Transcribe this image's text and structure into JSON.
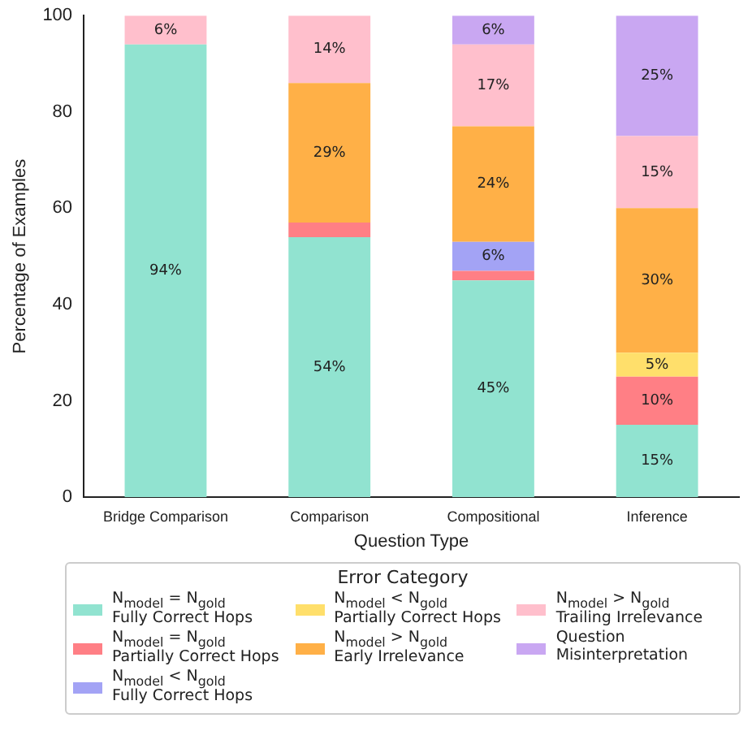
{
  "chart_data": {
    "type": "bar",
    "stacked": true,
    "xlabel": "Question Type",
    "ylabel": "Percentage of Examples",
    "legend_title": "Error Category",
    "legend": "bottom",
    "grid": false,
    "categories": [
      "Bridge Comparison",
      "Comparison",
      "Compositional",
      "Inference"
    ],
    "ylim": [
      0,
      100
    ],
    "yticks": [
      0,
      20,
      40,
      60,
      80,
      100
    ],
    "series": [
      {
        "name": "N$_{model}$ = N$_{gold}$\nFully Correct Hops",
        "color": "#91e3d0",
        "values": [
          94,
          54,
          45,
          15
        ],
        "value_labels": [
          "94%",
          "54%",
          "45%",
          "15%"
        ]
      },
      {
        "name": "N$_{model}$ = N$_{gold}$\nPartially Correct Hops",
        "color": "#ff7f85",
        "values": [
          0,
          3,
          2,
          10
        ],
        "value_labels": [
          null,
          null,
          null,
          "10%"
        ]
      },
      {
        "name": "N$_{model}$ < N$_{gold}$\nFully Correct Hops",
        "color": "#a3a3f5",
        "values": [
          0,
          0,
          6,
          0
        ],
        "value_labels": [
          null,
          null,
          "6%",
          null
        ]
      },
      {
        "name": "N$_{model}$ < N$_{gold}$\nPartially Correct Hops",
        "color": "#ffdf6b",
        "values": [
          0,
          0,
          0,
          5
        ],
        "value_labels": [
          null,
          null,
          null,
          "5%"
        ]
      },
      {
        "name": "N$_{model}$ > N$_{gold}$\nEarly Irrelevance",
        "color": "#ffb047",
        "values": [
          0,
          29,
          24,
          30
        ],
        "value_labels": [
          null,
          "29%",
          "24%",
          "30%"
        ]
      },
      {
        "name": "N$_{model}$ > N$_{gold}$\nTrailing Irrelevance",
        "color": "#ffbfcc",
        "values": [
          6,
          14,
          17,
          15
        ],
        "value_labels": [
          "6%",
          "14%",
          "17%",
          "15%"
        ]
      },
      {
        "name": "Question\nMisinterpretation",
        "color": "#c9a7f2",
        "values": [
          0,
          0,
          6,
          25
        ],
        "value_labels": [
          null,
          null,
          "6%",
          "25%"
        ]
      }
    ]
  }
}
